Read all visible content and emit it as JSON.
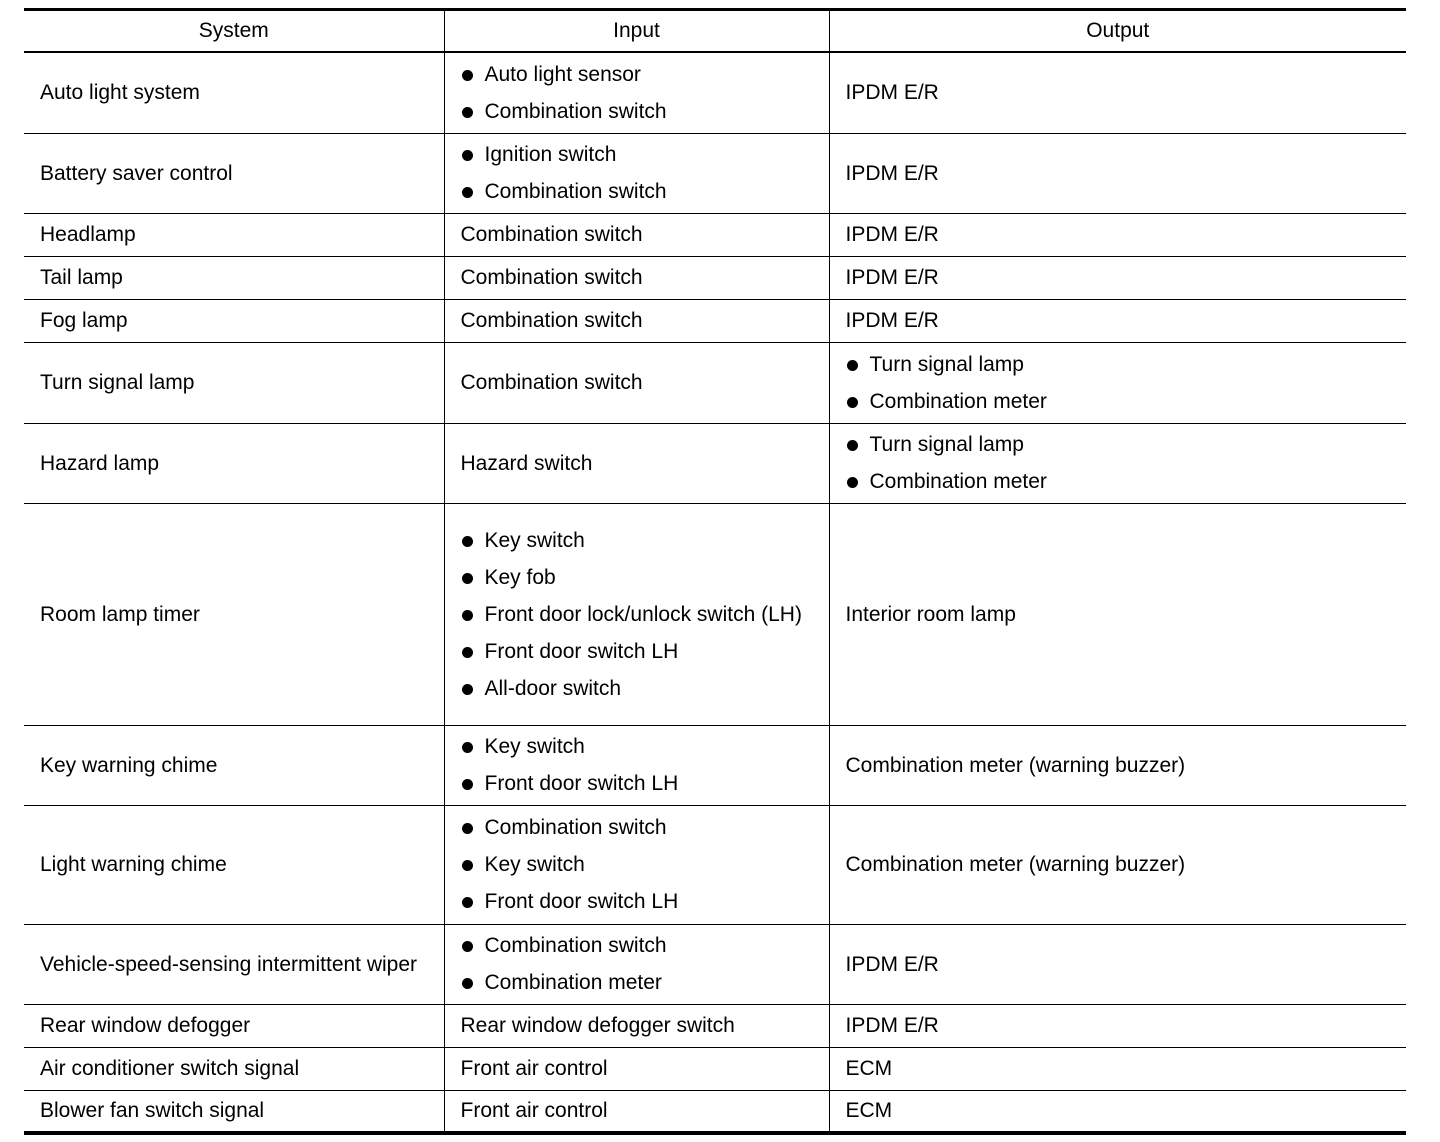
{
  "headers": [
    "System",
    "Input",
    "Output"
  ],
  "rows": [
    {
      "system": "Auto light system",
      "input": [
        "Auto light sensor",
        "Combination switch"
      ],
      "output": "IPDM E/R"
    },
    {
      "system": "Battery saver control",
      "input": [
        "Ignition switch",
        "Combination switch"
      ],
      "output": "IPDM E/R"
    },
    {
      "system": "Headlamp",
      "input": "Combination switch",
      "output": "IPDM E/R"
    },
    {
      "system": "Tail lamp",
      "input": "Combination switch",
      "output": "IPDM E/R"
    },
    {
      "system": "Fog lamp",
      "input": "Combination switch",
      "output": "IPDM E/R"
    },
    {
      "system": "Turn signal lamp",
      "input": "Combination switch",
      "output": [
        "Turn signal lamp",
        "Combination meter"
      ]
    },
    {
      "system": "Hazard lamp",
      "input": "Hazard switch",
      "output": [
        "Turn signal lamp",
        "Combination meter"
      ]
    },
    {
      "system": "Room lamp timer",
      "input": [
        "Key switch",
        "Key fob",
        "Front door lock/unlock switch (LH)",
        "Front door switch LH",
        "All-door switch"
      ],
      "output": "Interior room lamp"
    },
    {
      "system": "Key warning chime",
      "input": [
        "Key switch",
        "Front door switch LH"
      ],
      "output": "Combination meter (warning buzzer)"
    },
    {
      "system": "Light warning chime",
      "input": [
        "Combination switch",
        "Key switch",
        "Front door switch LH"
      ],
      "output": "Combination meter (warning buzzer)"
    },
    {
      "system": "Vehicle-speed-sensing intermittent wiper",
      "input": [
        "Combination switch",
        "Combination meter"
      ],
      "output": "IPDM E/R"
    },
    {
      "system": "Rear window defogger",
      "input": "Rear window defogger switch",
      "output": "IPDM E/R"
    },
    {
      "system": "Air conditioner switch signal",
      "input": "Front air control",
      "output": "ECM"
    },
    {
      "system": "Blower fan switch signal",
      "input": "Front air control",
      "output": "ECM"
    }
  ]
}
